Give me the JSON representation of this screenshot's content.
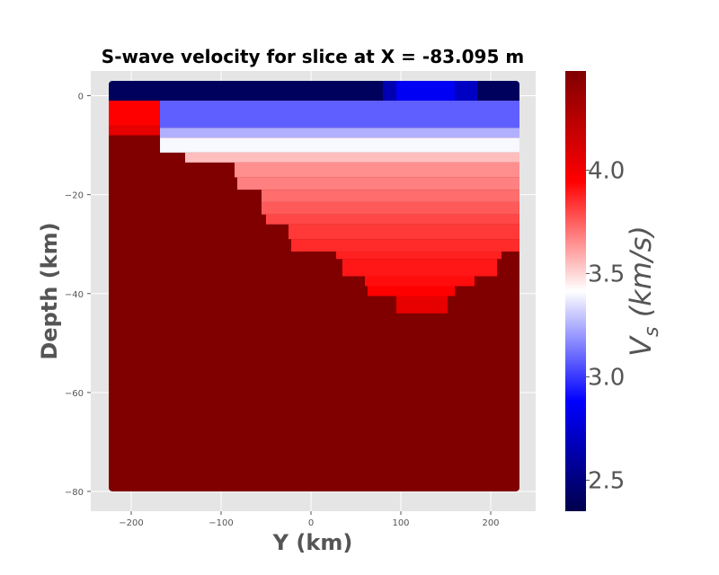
{
  "chart_data": {
    "type": "heatmap",
    "title": "S-wave velocity for slice at X = -83.095 m",
    "xlabel": "Y (km)",
    "ylabel": "Depth (km)",
    "xlim": [
      -245,
      250
    ],
    "ylim": [
      -84,
      5
    ],
    "x_ticks": [
      -200,
      -100,
      0,
      100,
      200
    ],
    "y_ticks": [
      0,
      -20,
      -40,
      -60,
      -80
    ],
    "grid": true,
    "colorbar": {
      "label": "V_s (km/s)",
      "label_base": "V",
      "label_subscript": "s",
      "label_rest": " (km/s)",
      "colormap": "seismic",
      "vmin": 2.35,
      "vmax": 4.48,
      "ticks": [
        2.5,
        3.0,
        3.5,
        4.0
      ],
      "tick_labels": [
        "2.5",
        "3.0",
        "3.5",
        "4.0"
      ]
    },
    "colormap_stops": [
      {
        "v": 0.0,
        "color": "#00004c"
      },
      {
        "v": 0.25,
        "color": "#0000ff"
      },
      {
        "v": 0.5,
        "color": "#ffffff"
      },
      {
        "v": 0.75,
        "color": "#ff0000"
      },
      {
        "v": 1.0,
        "color": "#800000"
      }
    ],
    "data_extent": {
      "y_min": -225,
      "y_max": 232,
      "depth_min": -80,
      "depth_max": 3
    },
    "layers": [
      {
        "y0": -225,
        "y1": 232,
        "d_top": 3,
        "d_bot": -1,
        "vs": 2.4
      },
      {
        "y0": 80,
        "y1": 95,
        "d_top": 3,
        "d_bot": -1,
        "vs": 2.65
      },
      {
        "y0": 95,
        "y1": 160,
        "d_top": 3,
        "d_bot": -1,
        "vs": 2.85
      },
      {
        "y0": 160,
        "y1": 185,
        "d_top": 3,
        "d_bot": -1,
        "vs": 2.7
      },
      {
        "y0": -225,
        "y1": 232,
        "d_top": -1,
        "d_bot": -80,
        "vs": 4.48
      },
      {
        "y0": -225,
        "y1": -168,
        "d_top": -1,
        "d_bot": -6,
        "vs": 3.95
      },
      {
        "y0": -225,
        "y1": -168,
        "d_top": -6,
        "d_bot": -8,
        "vs": 4.05
      },
      {
        "y0": -168,
        "y1": 232,
        "d_top": -1,
        "d_bot": -6.5,
        "vs": 3.08
      },
      {
        "y0": -168,
        "y1": 232,
        "d_top": -6.5,
        "d_bot": -8.5,
        "vs": 3.25
      },
      {
        "y0": -168,
        "y1": 232,
        "d_top": -8.5,
        "d_bot": -11.5,
        "vs": 3.4
      },
      {
        "y0": -140,
        "y1": 232,
        "d_top": -11.5,
        "d_bot": -13.5,
        "vs": 3.55
      },
      {
        "y0": -85,
        "y1": 232,
        "d_top": -13.5,
        "d_bot": -16.5,
        "vs": 3.65
      },
      {
        "y0": -82,
        "y1": 232,
        "d_top": -16.5,
        "d_bot": -19,
        "vs": 3.68
      },
      {
        "y0": -55,
        "y1": 232,
        "d_top": -19,
        "d_bot": -21.5,
        "vs": 3.72
      },
      {
        "y0": -55,
        "y1": 232,
        "d_top": -21.5,
        "d_bot": -24,
        "vs": 3.76
      },
      {
        "y0": -50,
        "y1": 232,
        "d_top": -24,
        "d_bot": -26,
        "vs": 3.8
      },
      {
        "y0": -25,
        "y1": 232,
        "d_top": -26,
        "d_bot": -29,
        "vs": 3.83
      },
      {
        "y0": -22,
        "y1": 232,
        "d_top": -29,
        "d_bot": -31.5,
        "vs": 3.86
      },
      {
        "y0": 28,
        "y1": 212,
        "d_top": -31.5,
        "d_bot": -33,
        "vs": 3.88
      },
      {
        "y0": 35,
        "y1": 207,
        "d_top": -33,
        "d_bot": -36.5,
        "vs": 3.9
      },
      {
        "y0": 60,
        "y1": 182,
        "d_top": -36.5,
        "d_bot": -38.5,
        "vs": 3.92
      },
      {
        "y0": 63,
        "y1": 160,
        "d_top": -38.5,
        "d_bot": -40.5,
        "vs": 3.95
      },
      {
        "y0": 95,
        "y1": 152,
        "d_top": -40.5,
        "d_bot": -44,
        "vs": 4.05
      }
    ]
  }
}
